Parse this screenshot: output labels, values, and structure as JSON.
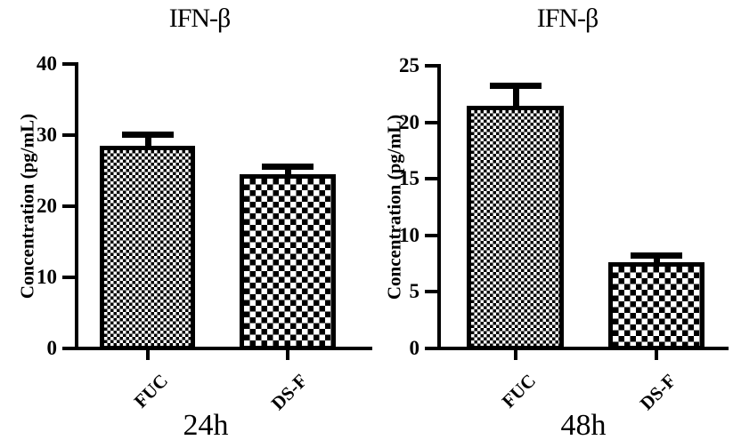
{
  "figure": {
    "background_color": "#ffffff",
    "ink_color": "#000000",
    "description": "Two bar charts of IFN-beta concentration with error bars"
  },
  "chart_data": [
    {
      "type": "bar",
      "title": "IFN-β",
      "ylabel": "Concentration (pg/mL)",
      "xlabel": "24h",
      "categories": [
        "FUC",
        "DS-F"
      ],
      "values": [
        28.5,
        24.5
      ],
      "errors": [
        2.0,
        1.5
      ],
      "ylim": [
        0,
        40
      ],
      "yticks": [
        0,
        10,
        20,
        30,
        40
      ],
      "grid": false,
      "legend_position": "none",
      "bar_patterns": [
        "fine-checker",
        "coarse-checker"
      ],
      "bar_fill": "#ffffff",
      "bar_edge": "#000000"
    },
    {
      "type": "bar",
      "title": "IFN-β",
      "ylabel": "Concentration (pg/mL)",
      "xlabel": "48h",
      "categories": [
        "FUC",
        "DS-F"
      ],
      "values": [
        21.5,
        7.6
      ],
      "errors": [
        2.0,
        0.9
      ],
      "ylim": [
        0,
        25
      ],
      "yticks": [
        0,
        5,
        10,
        15,
        20,
        25
      ],
      "grid": false,
      "legend_position": "none",
      "bar_patterns": [
        "fine-checker",
        "coarse-checker"
      ],
      "bar_fill": "#ffffff",
      "bar_edge": "#000000"
    }
  ]
}
